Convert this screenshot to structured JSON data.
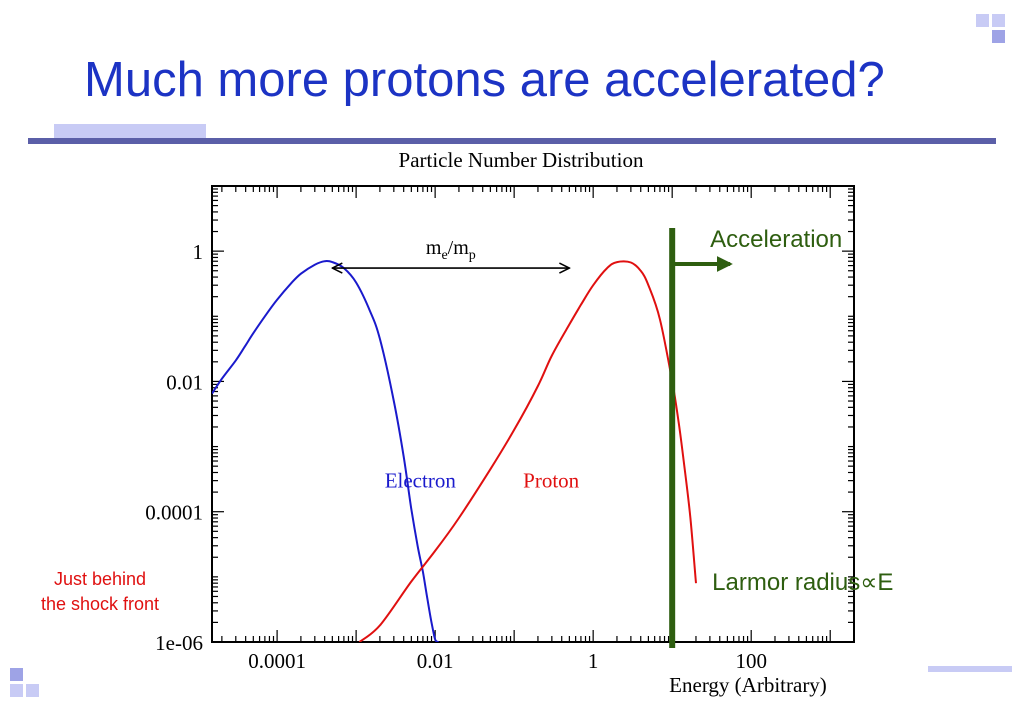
{
  "slide": {
    "title": "Much more protons are accelerated?",
    "side_note": [
      "Just behind",
      "the shock front"
    ]
  },
  "chart_data": {
    "type": "line",
    "title": "Particle Number Distribution",
    "xlabel": "Energy (Arbitrary)",
    "ylabel": "",
    "x_scale": "log",
    "y_scale": "log",
    "xlim": [
      1.5e-05,
      2000
    ],
    "ylim": [
      1e-06,
      10
    ],
    "x_ticks": [
      {
        "value": 0.0001,
        "label": "0.0001"
      },
      {
        "value": 0.01,
        "label": "0.01"
      },
      {
        "value": 1,
        "label": "1"
      },
      {
        "value": 100,
        "label": "100"
      }
    ],
    "y_ticks": [
      {
        "value": 1e-06,
        "label": "1e-06"
      },
      {
        "value": 0.0001,
        "label": "0.0001"
      },
      {
        "value": 0.01,
        "label": "0.01"
      },
      {
        "value": 1,
        "label": "1"
      }
    ],
    "series": [
      {
        "name": "Electron",
        "color": "#1a1acc",
        "x": [
          1.5e-05,
          2e-05,
          3e-05,
          4e-05,
          5e-05,
          7e-05,
          0.0001,
          0.00015,
          0.0002,
          0.0003,
          0.0004,
          0.0005,
          0.0007,
          0.001,
          0.0015,
          0.002,
          0.003,
          0.004,
          0.005,
          0.006,
          0.007,
          0.008,
          0.009,
          0.01,
          0.011
        ],
        "y": [
          0.0065,
          0.011,
          0.021,
          0.036,
          0.055,
          0.1,
          0.18,
          0.32,
          0.45,
          0.62,
          0.7,
          0.68,
          0.55,
          0.33,
          0.12,
          0.045,
          0.005,
          0.0007,
          0.00011,
          3e-05,
          1.2e-05,
          4.5e-06,
          2e-06,
          1.1e-06,
          1e-06
        ]
      },
      {
        "name": "Proton",
        "color": "#e01010",
        "x": [
          0.0011,
          0.002,
          0.005,
          0.01,
          0.02,
          0.05,
          0.1,
          0.2,
          0.3,
          0.5,
          0.7,
          1,
          1.5,
          2,
          3,
          4,
          5,
          7,
          10,
          12,
          14,
          17,
          20
        ],
        "y": [
          1e-06,
          1.8e-06,
          8.5e-06,
          2.5e-05,
          8e-05,
          0.00045,
          0.0018,
          0.0085,
          0.025,
          0.075,
          0.15,
          0.3,
          0.55,
          0.68,
          0.67,
          0.5,
          0.3,
          0.09,
          0.01,
          0.0025,
          0.0006,
          8e-05,
          8e-06
        ]
      }
    ],
    "annotations": {
      "ratio_arrow": {
        "label_main": "m",
        "label_sub1": "e",
        "label_sep": "/m",
        "label_sub2": "p",
        "x_from": 0.0005,
        "x_to": 0.5,
        "y": 0.55
      },
      "cutoff": {
        "x": 10,
        "label": "Acceleration",
        "sub_label_prefix": "Larmor radius",
        "sub_label_symbol": "∝",
        "sub_label_suffix": "E",
        "color": "#2e5e10"
      },
      "series_labels": [
        {
          "series": "Electron",
          "text": "Electron",
          "x": 0.0023,
          "y": 0.0003
        },
        {
          "series": "Proton",
          "text": "Proton",
          "x": 0.13,
          "y": 0.0003
        }
      ]
    },
    "grid": false,
    "legend": "none"
  }
}
